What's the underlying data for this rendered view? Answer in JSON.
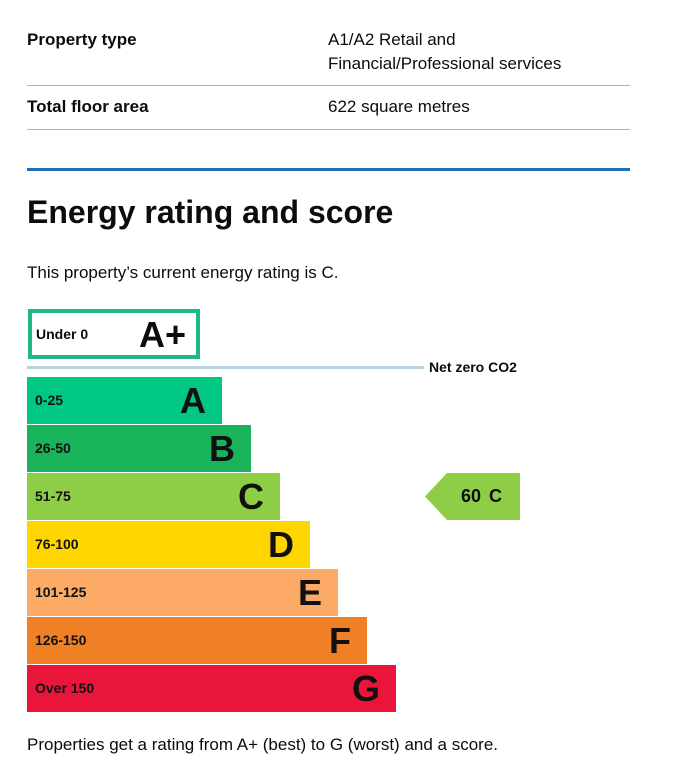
{
  "summary": [
    {
      "label": "Property type",
      "value_lines": [
        "A1/A2 Retail and",
        "Financial/Professional services"
      ]
    },
    {
      "label": "Total floor area",
      "value": "622 square metres"
    }
  ],
  "heading": "Energy rating and score",
  "current_text": "This property’s current energy rating is C.",
  "chart": {
    "top": {
      "range": "Under 0",
      "letter": "A+",
      "color": "#1fb989"
    },
    "net_zero_label": "Net zero CO2",
    "bands": [
      {
        "range": "0-25",
        "letter": "A",
        "color": "#00c781"
      },
      {
        "range": "26-50",
        "letter": "B",
        "color": "#19b459"
      },
      {
        "range": "51-75",
        "letter": "C",
        "color": "#8dce46"
      },
      {
        "range": "76-100",
        "letter": "D",
        "color": "#ffd500"
      },
      {
        "range": "101-125",
        "letter": "E",
        "color": "#fcaa65"
      },
      {
        "range": "126-150",
        "letter": "F",
        "color": "#ef8023"
      },
      {
        "range": "Over 150",
        "letter": "G",
        "color": "#e9153b"
      }
    ],
    "current": {
      "score": "60",
      "letter": "C",
      "color": "#8dce46"
    }
  },
  "footer_text": "Properties get a rating from A+ (best) to G (worst) and a score."
}
